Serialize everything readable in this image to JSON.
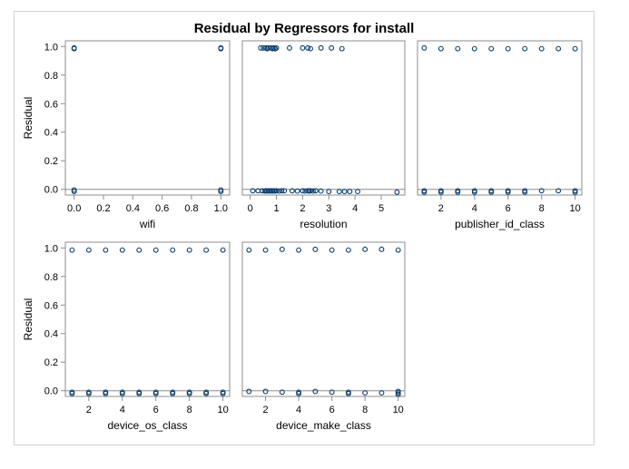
{
  "chart_data": {
    "type": "scatter",
    "title": "Residual by Regressors for install",
    "colors": {
      "marker": "#0b3d6e",
      "refline": "#8c8c8c",
      "frame": "#8c8c8c",
      "text": "#000000"
    },
    "ylim": [
      -0.04,
      1.04
    ],
    "yticks": [
      0.0,
      0.2,
      0.4,
      0.6,
      0.8,
      1.0
    ],
    "ytick_labels": [
      "0.0",
      "0.2",
      "0.4",
      "0.6",
      "0.8",
      "1.0"
    ],
    "panels": [
      {
        "id": "wifi",
        "xlabel": "wifi",
        "ylabel": "Residual",
        "xlim": [
          -0.06,
          1.06
        ],
        "xticks": [
          0.0,
          0.2,
          0.4,
          0.6,
          0.8,
          1.0
        ],
        "xtick_labels": [
          "0.0",
          "0.2",
          "0.4",
          "0.6",
          "0.8",
          "1.0"
        ],
        "points": [
          [
            0.0,
            0.99
          ],
          [
            0.0,
            0.985
          ],
          [
            0.0,
            -0.005
          ],
          [
            0.0,
            -0.015
          ],
          [
            1.0,
            0.99
          ],
          [
            1.0,
            0.985
          ],
          [
            1.0,
            -0.005
          ],
          [
            1.0,
            -0.015
          ]
        ]
      },
      {
        "id": "resolution",
        "xlabel": "resolution",
        "ylabel": "",
        "xlim": [
          -0.3,
          5.9
        ],
        "xticks": [
          0,
          1,
          2,
          3,
          4,
          5
        ],
        "xtick_labels": [
          "0",
          "1",
          "2",
          "3",
          "4",
          "5"
        ],
        "points": [
          [
            0.4,
            0.99
          ],
          [
            0.5,
            0.99
          ],
          [
            0.6,
            0.99
          ],
          [
            0.65,
            0.985
          ],
          [
            0.7,
            0.99
          ],
          [
            0.8,
            0.99
          ],
          [
            0.85,
            0.985
          ],
          [
            0.9,
            0.99
          ],
          [
            0.95,
            0.985
          ],
          [
            1.0,
            0.99
          ],
          [
            1.5,
            0.99
          ],
          [
            2.0,
            0.99
          ],
          [
            2.2,
            0.99
          ],
          [
            2.3,
            0.985
          ],
          [
            2.7,
            0.99
          ],
          [
            3.1,
            0.99
          ],
          [
            3.5,
            0.985
          ],
          [
            0.1,
            -0.01
          ],
          [
            0.3,
            -0.01
          ],
          [
            0.45,
            -0.01
          ],
          [
            0.55,
            -0.012
          ],
          [
            0.6,
            -0.01
          ],
          [
            0.65,
            -0.012
          ],
          [
            0.7,
            -0.01
          ],
          [
            0.75,
            -0.012
          ],
          [
            0.8,
            -0.01
          ],
          [
            0.85,
            -0.012
          ],
          [
            0.9,
            -0.01
          ],
          [
            0.95,
            -0.012
          ],
          [
            1.0,
            -0.01
          ],
          [
            1.1,
            -0.012
          ],
          [
            1.2,
            -0.01
          ],
          [
            1.3,
            -0.01
          ],
          [
            1.6,
            -0.01
          ],
          [
            1.8,
            -0.012
          ],
          [
            2.0,
            -0.01
          ],
          [
            2.1,
            -0.012
          ],
          [
            2.2,
            -0.01
          ],
          [
            2.25,
            -0.012
          ],
          [
            2.3,
            -0.01
          ],
          [
            2.4,
            -0.012
          ],
          [
            2.5,
            -0.01
          ],
          [
            2.7,
            -0.012
          ],
          [
            3.0,
            -0.015
          ],
          [
            3.4,
            -0.015
          ],
          [
            3.6,
            -0.015
          ],
          [
            3.8,
            -0.015
          ],
          [
            4.1,
            -0.015
          ],
          [
            5.6,
            -0.02
          ]
        ]
      },
      {
        "id": "publisher_id_class",
        "xlabel": "publisher_id_class",
        "ylabel": "",
        "xlim": [
          0.6,
          10.4
        ],
        "xticks": [
          2,
          4,
          6,
          8,
          10
        ],
        "xtick_labels": [
          "2",
          "4",
          "6",
          "8",
          "10"
        ],
        "points": [
          [
            1,
            0.99
          ],
          [
            2,
            0.985
          ],
          [
            3,
            0.985
          ],
          [
            4,
            0.985
          ],
          [
            5,
            0.985
          ],
          [
            6,
            0.985
          ],
          [
            7,
            0.985
          ],
          [
            8,
            0.985
          ],
          [
            9,
            0.985
          ],
          [
            10,
            0.985
          ],
          [
            1,
            -0.01
          ],
          [
            1,
            -0.02
          ],
          [
            2,
            -0.01
          ],
          [
            2,
            -0.02
          ],
          [
            3,
            -0.01
          ],
          [
            3,
            -0.02
          ],
          [
            4,
            -0.01
          ],
          [
            4,
            -0.02
          ],
          [
            5,
            -0.01
          ],
          [
            5,
            -0.02
          ],
          [
            6,
            -0.01
          ],
          [
            6,
            -0.02
          ],
          [
            7,
            -0.01
          ],
          [
            7,
            -0.02
          ],
          [
            8,
            -0.01
          ],
          [
            9,
            -0.01
          ],
          [
            10,
            -0.01
          ],
          [
            10,
            -0.02
          ]
        ]
      },
      {
        "id": "device_os_class",
        "xlabel": "device_os_class",
        "ylabel": "Residual",
        "xlim": [
          0.6,
          10.4
        ],
        "xticks": [
          2,
          4,
          6,
          8,
          10
        ],
        "xtick_labels": [
          "2",
          "4",
          "6",
          "8",
          "10"
        ],
        "points": [
          [
            1,
            0.985
          ],
          [
            2,
            0.985
          ],
          [
            3,
            0.985
          ],
          [
            4,
            0.985
          ],
          [
            5,
            0.985
          ],
          [
            6,
            0.985
          ],
          [
            7,
            0.985
          ],
          [
            8,
            0.985
          ],
          [
            9,
            0.985
          ],
          [
            10,
            0.985
          ],
          [
            1,
            -0.01
          ],
          [
            1,
            -0.02
          ],
          [
            2,
            -0.01
          ],
          [
            2,
            -0.02
          ],
          [
            3,
            -0.01
          ],
          [
            3,
            -0.02
          ],
          [
            4,
            -0.01
          ],
          [
            4,
            -0.02
          ],
          [
            5,
            -0.01
          ],
          [
            5,
            -0.02
          ],
          [
            6,
            -0.01
          ],
          [
            6,
            -0.02
          ],
          [
            7,
            -0.01
          ],
          [
            7,
            -0.02
          ],
          [
            8,
            -0.01
          ],
          [
            8,
            -0.02
          ],
          [
            9,
            -0.01
          ],
          [
            9,
            -0.02
          ],
          [
            10,
            -0.01
          ],
          [
            10,
            -0.02
          ]
        ]
      },
      {
        "id": "device_make_class",
        "xlabel": "device_make_class",
        "ylabel": "",
        "xlim": [
          0.6,
          10.4
        ],
        "xticks": [
          2,
          4,
          6,
          8,
          10
        ],
        "xtick_labels": [
          "2",
          "4",
          "6",
          "8",
          "10"
        ],
        "points": [
          [
            1,
            0.985
          ],
          [
            2,
            0.985
          ],
          [
            3,
            0.99
          ],
          [
            4,
            0.985
          ],
          [
            5,
            0.99
          ],
          [
            6,
            0.985
          ],
          [
            7,
            0.985
          ],
          [
            8,
            0.99
          ],
          [
            9,
            0.99
          ],
          [
            10,
            0.985
          ],
          [
            1,
            -0.005
          ],
          [
            2,
            -0.005
          ],
          [
            3,
            -0.01
          ],
          [
            4,
            -0.01
          ],
          [
            4,
            -0.02
          ],
          [
            5,
            -0.005
          ],
          [
            6,
            -0.01
          ],
          [
            7,
            -0.01
          ],
          [
            7,
            -0.02
          ],
          [
            8,
            -0.015
          ],
          [
            9,
            -0.015
          ],
          [
            10,
            -0.005
          ],
          [
            10,
            -0.015
          ],
          [
            10,
            -0.025
          ]
        ]
      }
    ]
  }
}
